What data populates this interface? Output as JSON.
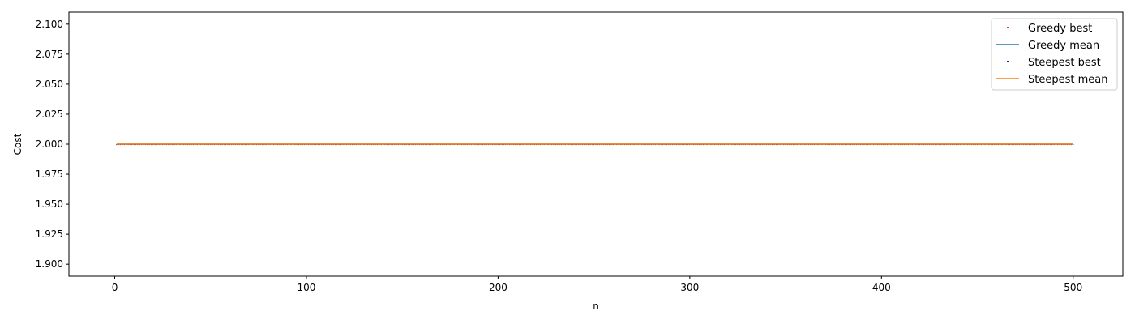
{
  "chart_data": {
    "type": "line",
    "title": "",
    "xlabel": "n",
    "ylabel": "Cost",
    "xlim": [
      -23.9,
      525.9
    ],
    "ylim": [
      1.89,
      2.11
    ],
    "xticks": [
      0,
      100,
      200,
      300,
      400,
      500
    ],
    "xtick_labels": [
      "0",
      "100",
      "200",
      "300",
      "400",
      "500"
    ],
    "yticks": [
      1.9,
      1.925,
      1.95,
      1.975,
      2.0,
      2.025,
      2.05,
      2.075,
      2.1
    ],
    "ytick_labels": [
      "1.900",
      "1.925",
      "1.950",
      "1.975",
      "2.000",
      "2.025",
      "2.050",
      "2.075",
      "2.100"
    ],
    "grid": false,
    "legend_position": "top-right",
    "x": {
      "start": 1,
      "end": 500,
      "step": 1
    },
    "series": [
      {
        "name": "Greedy best",
        "style": "dots",
        "color": "#d62728",
        "value": 2.0
      },
      {
        "name": "Greedy mean",
        "style": "line",
        "color": "#1f77b4",
        "value": 2.0
      },
      {
        "name": "Steepest best",
        "style": "dots",
        "color": "#0000aa",
        "value": 2.0
      },
      {
        "name": "Steepest mean",
        "style": "line",
        "color": "#ff7f0e",
        "value": 2.0
      }
    ]
  }
}
